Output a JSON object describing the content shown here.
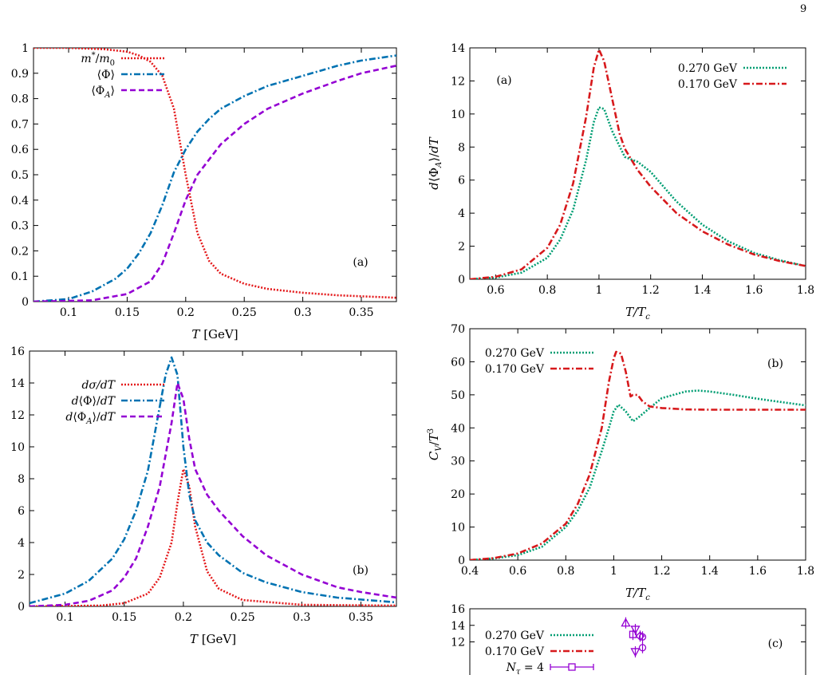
{
  "page_number": "9",
  "colors": {
    "red": "#e41a1c",
    "blue": "#0072b2",
    "purple": "#9400d3",
    "green": "#009e73",
    "darkred": "#d7191c"
  },
  "chart_data": [
    {
      "id": "left-top",
      "type": "line",
      "panel_label": "(a)",
      "xlabel": "T [GeV]",
      "ylabel": "",
      "xlim": [
        0.07,
        0.38
      ],
      "ylim": [
        0,
        1
      ],
      "xticks": [
        {
          "v": 0.1,
          "t": "0.1"
        },
        {
          "v": 0.15,
          "t": "0.15"
        },
        {
          "v": 0.2,
          "t": "0.2"
        },
        {
          "v": 0.25,
          "t": "0.25"
        },
        {
          "v": 0.3,
          "t": "0.3"
        },
        {
          "v": 0.35,
          "t": "0.35"
        }
      ],
      "yticks": [
        {
          "v": 0,
          "t": "0"
        },
        {
          "v": 0.1,
          "t": "0.1"
        },
        {
          "v": 0.2,
          "t": "0.2"
        },
        {
          "v": 0.3,
          "t": "0.3"
        },
        {
          "v": 0.4,
          "t": "0.4"
        },
        {
          "v": 0.5,
          "t": "0.5"
        },
        {
          "v": 0.6,
          "t": "0.6"
        },
        {
          "v": 0.7,
          "t": "0.7"
        },
        {
          "v": 0.8,
          "t": "0.8"
        },
        {
          "v": 0.9,
          "t": "0.9"
        },
        {
          "v": 1,
          "t": "1"
        }
      ],
      "legend_position": "top-left",
      "series": [
        {
          "name": "m*/m0",
          "color": "#e41a1c",
          "dash": "2,2",
          "x": [
            0.07,
            0.1,
            0.13,
            0.15,
            0.16,
            0.17,
            0.18,
            0.19,
            0.2,
            0.21,
            0.22,
            0.23,
            0.25,
            0.27,
            0.3,
            0.33,
            0.38
          ],
          "y": [
            1.0,
            1.0,
            0.995,
            0.985,
            0.97,
            0.945,
            0.89,
            0.76,
            0.5,
            0.27,
            0.16,
            0.11,
            0.07,
            0.05,
            0.035,
            0.025,
            0.015
          ]
        },
        {
          "name": "⟨Φ⟩",
          "color": "#0072b2",
          "dash": "8,3,2,3",
          "x": [
            0.07,
            0.1,
            0.12,
            0.14,
            0.15,
            0.16,
            0.17,
            0.18,
            0.19,
            0.2,
            0.21,
            0.22,
            0.23,
            0.25,
            0.27,
            0.3,
            0.33,
            0.35,
            0.38
          ],
          "y": [
            0.0,
            0.01,
            0.04,
            0.09,
            0.13,
            0.19,
            0.27,
            0.38,
            0.51,
            0.6,
            0.67,
            0.72,
            0.76,
            0.81,
            0.85,
            0.89,
            0.93,
            0.95,
            0.97
          ]
        },
        {
          "name": "⟨Φ_A⟩",
          "color": "#9400d3",
          "dash": "7,4",
          "x": [
            0.07,
            0.12,
            0.15,
            0.17,
            0.18,
            0.19,
            0.2,
            0.21,
            0.22,
            0.23,
            0.25,
            0.27,
            0.3,
            0.33,
            0.35,
            0.38
          ],
          "y": [
            0.0,
            0.005,
            0.03,
            0.08,
            0.15,
            0.27,
            0.4,
            0.5,
            0.56,
            0.62,
            0.7,
            0.76,
            0.82,
            0.87,
            0.9,
            0.93
          ]
        }
      ]
    },
    {
      "id": "left-bottom",
      "type": "line",
      "panel_label": "(b)",
      "xlabel": "T [GeV]",
      "ylabel": "",
      "xlim": [
        0.07,
        0.38
      ],
      "ylim": [
        0,
        16
      ],
      "xticks": [
        {
          "v": 0.1,
          "t": "0.1"
        },
        {
          "v": 0.15,
          "t": "0.15"
        },
        {
          "v": 0.2,
          "t": "0.2"
        },
        {
          "v": 0.25,
          "t": "0.25"
        },
        {
          "v": 0.3,
          "t": "0.3"
        },
        {
          "v": 0.35,
          "t": "0.35"
        }
      ],
      "yticks": [
        {
          "v": 0,
          "t": "0"
        },
        {
          "v": 2,
          "t": "2"
        },
        {
          "v": 4,
          "t": "4"
        },
        {
          "v": 6,
          "t": "6"
        },
        {
          "v": 8,
          "t": "8"
        },
        {
          "v": 10,
          "t": "10"
        },
        {
          "v": 12,
          "t": "12"
        },
        {
          "v": 14,
          "t": "14"
        },
        {
          "v": 16,
          "t": "16"
        }
      ],
      "legend_position": "top-left",
      "series": [
        {
          "name": "dσ/dT",
          "color": "#e41a1c",
          "dash": "2,2",
          "x": [
            0.07,
            0.13,
            0.15,
            0.17,
            0.18,
            0.19,
            0.195,
            0.2,
            0.205,
            0.21,
            0.22,
            0.23,
            0.25,
            0.3,
            0.38
          ],
          "y": [
            0,
            0.05,
            0.2,
            0.8,
            1.8,
            4,
            6.5,
            8.6,
            7.5,
            5,
            2.2,
            1.1,
            0.4,
            0.1,
            0.05
          ]
        },
        {
          "name": "d⟨Φ⟩/dT",
          "color": "#0072b2",
          "dash": "8,3,2,3",
          "x": [
            0.07,
            0.1,
            0.12,
            0.14,
            0.15,
            0.16,
            0.17,
            0.18,
            0.185,
            0.19,
            0.195,
            0.2,
            0.205,
            0.21,
            0.22,
            0.23,
            0.25,
            0.27,
            0.3,
            0.33,
            0.38
          ],
          "y": [
            0.2,
            0.8,
            1.6,
            3,
            4.2,
            6,
            8.5,
            12.5,
            14.5,
            15.6,
            14.5,
            10,
            7,
            5.4,
            4,
            3.2,
            2.1,
            1.5,
            0.9,
            0.55,
            0.25
          ]
        },
        {
          "name": "d⟨Φ_A⟩/dT",
          "color": "#9400d3",
          "dash": "7,4",
          "x": [
            0.07,
            0.1,
            0.12,
            0.14,
            0.15,
            0.16,
            0.17,
            0.18,
            0.19,
            0.195,
            0.2,
            0.205,
            0.21,
            0.22,
            0.23,
            0.25,
            0.27,
            0.3,
            0.33,
            0.35,
            0.38
          ],
          "y": [
            0,
            0.1,
            0.35,
            1,
            1.8,
            3,
            5,
            7.5,
            11.5,
            14,
            13,
            10.5,
            8.6,
            7,
            6,
            4.4,
            3.2,
            2,
            1.2,
            0.9,
            0.55
          ]
        }
      ]
    },
    {
      "id": "right-top",
      "type": "line",
      "panel_label": "(a)",
      "xlabel": "T/T_c",
      "ylabel": "d⟨Φ_A⟩/dT",
      "xlim": [
        0.5,
        1.8
      ],
      "ylim": [
        0,
        14
      ],
      "xticks": [
        {
          "v": 0.6,
          "t": "0.6"
        },
        {
          "v": 0.8,
          "t": "0.8"
        },
        {
          "v": 1,
          "t": "1"
        },
        {
          "v": 1.2,
          "t": "1.2"
        },
        {
          "v": 1.4,
          "t": "1.4"
        },
        {
          "v": 1.6,
          "t": "1.6"
        },
        {
          "v": 1.8,
          "t": "1.8"
        }
      ],
      "yticks": [
        {
          "v": 0,
          "t": "0"
        },
        {
          "v": 2,
          "t": "2"
        },
        {
          "v": 4,
          "t": "4"
        },
        {
          "v": 6,
          "t": "6"
        },
        {
          "v": 8,
          "t": "8"
        },
        {
          "v": 10,
          "t": "10"
        },
        {
          "v": 12,
          "t": "12"
        },
        {
          "v": 14,
          "t": "14"
        }
      ],
      "legend_position": "top-right",
      "series": [
        {
          "name": "0.270 GeV",
          "color": "#009e73",
          "dash": "2,2",
          "x": [
            0.5,
            0.6,
            0.7,
            0.8,
            0.85,
            0.9,
            0.95,
            0.98,
            1.0,
            1.02,
            1.05,
            1.1,
            1.15,
            1.2,
            1.3,
            1.4,
            1.5,
            1.6,
            1.7,
            1.8
          ],
          "y": [
            0,
            0.1,
            0.4,
            1.3,
            2.4,
            4.2,
            7.2,
            9.5,
            10.4,
            10.3,
            9,
            7.4,
            7.1,
            6.5,
            4.7,
            3.3,
            2.3,
            1.6,
            1.15,
            0.8
          ]
        },
        {
          "name": "0.170 GeV",
          "color": "#d7191c",
          "dash": "8,3,2,3",
          "x": [
            0.5,
            0.6,
            0.7,
            0.8,
            0.85,
            0.9,
            0.95,
            0.98,
            1.0,
            1.02,
            1.05,
            1.08,
            1.1,
            1.15,
            1.2,
            1.3,
            1.4,
            1.5,
            1.6,
            1.7,
            1.8
          ],
          "y": [
            0,
            0.15,
            0.6,
            1.9,
            3.3,
            5.8,
            9.8,
            12.8,
            13.9,
            13.2,
            11,
            8.8,
            7.9,
            6.6,
            5.6,
            4,
            2.9,
            2.1,
            1.5,
            1.1,
            0.8
          ]
        }
      ]
    },
    {
      "id": "right-middle",
      "type": "line",
      "panel_label": "(b)",
      "xlabel": "T/T_c",
      "ylabel": "C_V/T^3",
      "xlim": [
        0.4,
        1.8
      ],
      "ylim": [
        0,
        70
      ],
      "xticks": [
        {
          "v": 0.4,
          "t": "0.4"
        },
        {
          "v": 0.6,
          "t": "0.6"
        },
        {
          "v": 0.8,
          "t": "0.8"
        },
        {
          "v": 1,
          "t": "1"
        },
        {
          "v": 1.2,
          "t": "1.2"
        },
        {
          "v": 1.4,
          "t": "1.4"
        },
        {
          "v": 1.6,
          "t": "1.6"
        },
        {
          "v": 1.8,
          "t": "1.8"
        }
      ],
      "yticks": [
        {
          "v": 0,
          "t": "0"
        },
        {
          "v": 10,
          "t": "10"
        },
        {
          "v": 20,
          "t": "20"
        },
        {
          "v": 30,
          "t": "30"
        },
        {
          "v": 40,
          "t": "40"
        },
        {
          "v": 50,
          "t": "50"
        },
        {
          "v": 60,
          "t": "60"
        },
        {
          "v": 70,
          "t": "70"
        }
      ],
      "legend_position": "top-left",
      "series": [
        {
          "name": "0.270 GeV",
          "color": "#009e73",
          "dash": "2,2",
          "x": [
            0.4,
            0.5,
            0.6,
            0.7,
            0.8,
            0.85,
            0.9,
            0.95,
            0.98,
            1.0,
            1.02,
            1.05,
            1.08,
            1.1,
            1.15,
            1.2,
            1.3,
            1.35,
            1.4,
            1.5,
            1.6,
            1.7,
            1.8
          ],
          "y": [
            0,
            0.5,
            1.5,
            4,
            10,
            15,
            22,
            33,
            40,
            45,
            47,
            45,
            42,
            43,
            46,
            49,
            51,
            51.3,
            51,
            50,
            48.8,
            47.8,
            46.8
          ]
        },
        {
          "name": "0.170 GeV",
          "color": "#d7191c",
          "dash": "8,3,2,3",
          "x": [
            0.4,
            0.5,
            0.6,
            0.7,
            0.8,
            0.85,
            0.9,
            0.95,
            0.98,
            1.0,
            1.01,
            1.03,
            1.05,
            1.07,
            1.08,
            1.1,
            1.12,
            1.15,
            1.2,
            1.3,
            1.4,
            1.5,
            1.6,
            1.7,
            1.8
          ],
          "y": [
            0,
            0.6,
            2,
            5,
            11,
            17,
            26,
            40,
            54,
            61,
            63,
            62.5,
            57,
            49.5,
            50,
            50,
            48,
            46.5,
            46,
            45.6,
            45.5,
            45.5,
            45.5,
            45.5,
            45.5
          ]
        }
      ]
    },
    {
      "id": "right-bottom",
      "type": "line",
      "panel_label": "(c)",
      "xlabel": "",
      "ylabel": "",
      "xlim": [
        0.4,
        1.8
      ],
      "ylim": [
        8,
        16
      ],
      "yticks": [
        {
          "v": 12,
          "t": "12"
        },
        {
          "v": 14,
          "t": "14"
        },
        {
          "v": 16,
          "t": "16"
        }
      ],
      "legend_position": "top-left",
      "legend": [
        "0.270 GeV",
        "0.170 GeV",
        "N_τ = 4"
      ],
      "series": [
        {
          "name": "0.270 GeV",
          "color": "#009e73",
          "dash": "2,2"
        },
        {
          "name": "0.170 GeV",
          "color": "#d7191c",
          "dash": "8,3,2,3"
        },
        {
          "name": "N_τ = 4",
          "color": "#9400d3",
          "marker": "square-errorbar"
        }
      ],
      "markers": [
        {
          "shape": "triangle-up",
          "x": 1.05,
          "y": 14.3
        },
        {
          "shape": "triangle-down",
          "x": 1.09,
          "y": 13.5
        },
        {
          "shape": "square",
          "x": 1.08,
          "y": 12.9
        },
        {
          "shape": "diamond",
          "x": 1.11,
          "y": 12.7
        },
        {
          "shape": "circle",
          "x": 1.12,
          "y": 12.6
        },
        {
          "shape": "circle",
          "x": 1.12,
          "y": 11.3
        },
        {
          "shape": "triangle-down",
          "x": 1.09,
          "y": 10.8
        }
      ]
    }
  ]
}
